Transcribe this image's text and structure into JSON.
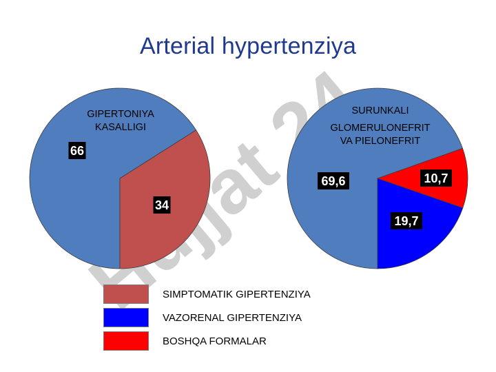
{
  "title": "Arterial hypertenziya",
  "watermark": "Hujjat 24",
  "colors": {
    "gipertoniya": "#4f7dbd",
    "simptomatik": "#c0504d",
    "vazorenal": "#0000ff",
    "boshqa": "#ff0000",
    "title": "#1f3a8c"
  },
  "legend": [
    {
      "label": "SIMPTOMATIK GIPERTENZIYA",
      "color": "#c0504d"
    },
    {
      "label": "VAZORENAL GIPERTENZIYA",
      "color": "#0000ff"
    },
    {
      "label": "BOSHQA FORMALAR",
      "color": "#ff0000"
    }
  ],
  "chart_data": [
    {
      "type": "pie",
      "slices": [
        {
          "label": "GIPERTONIYA KASALLIGI",
          "value": 66,
          "display": "66",
          "color": "#4f7dbd"
        },
        {
          "label": "SIMPTOMATIK GIPERTENZIYA",
          "value": 34,
          "display": "34",
          "color": "#c0504d"
        }
      ],
      "category_label_lines": [
        "GIPERTONIYA",
        "KASALLIGI"
      ]
    },
    {
      "type": "pie",
      "slices": [
        {
          "label": "SURUNKALI GLOMERULONEFRIT VA PIELONEFRIT",
          "value": 69.6,
          "display": "69,6",
          "color": "#4f7dbd"
        },
        {
          "label": "BOSHQA FORMALAR",
          "value": 10.7,
          "display": "10,7",
          "color": "#ff0000"
        },
        {
          "label": "VAZORENAL GIPERTENZIYA",
          "value": 19.7,
          "display": "19,7",
          "color": "#0000ff"
        }
      ],
      "category_label_lines": [
        "SURUNKALI",
        "GLOMERULONEFRIT",
        "VA PIELONEFRIT"
      ]
    }
  ]
}
